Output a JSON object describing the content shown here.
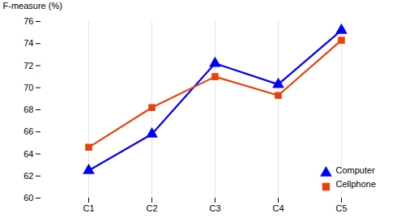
{
  "chart_data": {
    "type": "line",
    "categories": [
      "C1",
      "C2",
      "C3",
      "C4",
      "C5"
    ],
    "series": [
      {
        "name": "Computer",
        "color": "#0000FF",
        "marker": "triangle",
        "values": [
          62.5,
          65.8,
          72.2,
          70.3,
          75.2
        ]
      },
      {
        "name": "Cellphone",
        "color": "#E8420A",
        "marker": "square",
        "values": [
          64.6,
          68.2,
          71.0,
          69.3,
          74.3
        ]
      }
    ],
    "ylabel": "F-measure (%)",
    "ylim": [
      60,
      76
    ],
    "yticks": [
      60,
      62,
      64,
      66,
      68,
      70,
      72,
      74,
      76
    ],
    "grid": "x",
    "legend": "lower right"
  }
}
